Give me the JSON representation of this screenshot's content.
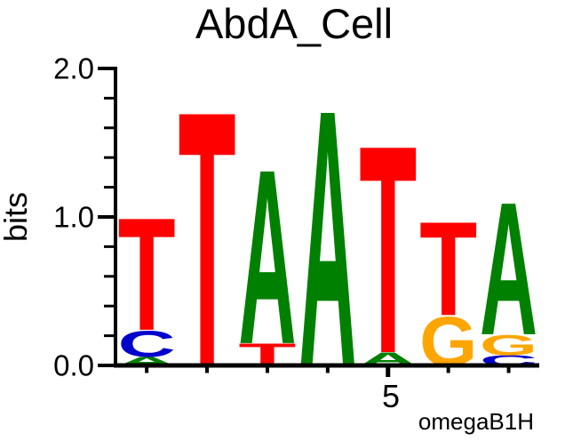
{
  "page": {
    "background": "#FFFFFF",
    "text_color": "#000000"
  },
  "chart_data": {
    "type": "sequence_logo",
    "title": "AbdA_Cell",
    "ylabel": "bits",
    "xlabel": "",
    "ylim": [
      0,
      2
    ],
    "y_major_ticks": [
      0,
      1,
      2
    ],
    "y_major_tick_labels": [
      "0.0",
      "1.0",
      "2.0"
    ],
    "y_minor_tick_step": 0.2,
    "x_tick": {
      "position": 5,
      "label": "5"
    },
    "footnote": "omegaB1H",
    "grid": "off",
    "base_colors": {
      "A": "#008000",
      "C": "#0000CC",
      "G": "#FFA500",
      "T": "#FF0000"
    },
    "positions": [
      {
        "index": 1,
        "letters": [
          {
            "base": "T",
            "bits": 0.78
          },
          {
            "base": "C",
            "bits": 0.18
          },
          {
            "base": "A",
            "bits": 0.06
          }
        ]
      },
      {
        "index": 2,
        "letters": [
          {
            "base": "T",
            "bits": 1.77
          }
        ]
      },
      {
        "index": 3,
        "letters": [
          {
            "base": "A",
            "bits": 1.21
          },
          {
            "base": "T",
            "bits": 0.15
          }
        ]
      },
      {
        "index": 4,
        "letters": [
          {
            "base": "A",
            "bits": 1.78
          }
        ]
      },
      {
        "index": 5,
        "letters": [
          {
            "base": "T",
            "bits": 1.44
          },
          {
            "base": "A",
            "bits": 0.09
          }
        ]
      },
      {
        "index": 6,
        "letters": [
          {
            "base": "T",
            "bits": 0.65
          },
          {
            "base": "G",
            "bits": 0.34
          }
        ]
      },
      {
        "index": 7,
        "letters": [
          {
            "base": "A",
            "bits": 0.92
          },
          {
            "base": "G",
            "bits": 0.14
          },
          {
            "base": "C",
            "bits": 0.07
          }
        ]
      }
    ]
  }
}
